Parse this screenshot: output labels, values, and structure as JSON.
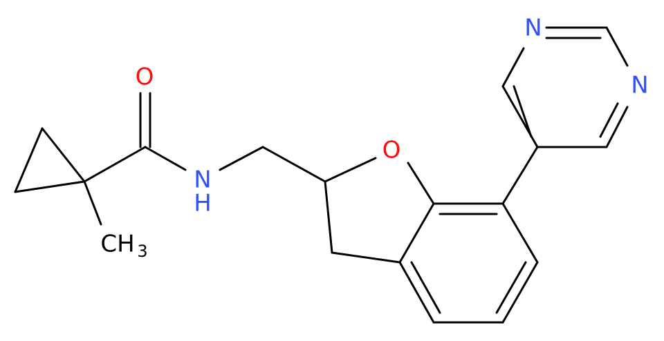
{
  "atoms": [
    {
      "label": "O"
    },
    {
      "label": "N"
    },
    {
      "label": "H"
    },
    {
      "label": "O"
    },
    {
      "label": "N"
    },
    {
      "label": "N"
    },
    {
      "label": "CH"
    },
    {
      "label": "3"
    }
  ]
}
